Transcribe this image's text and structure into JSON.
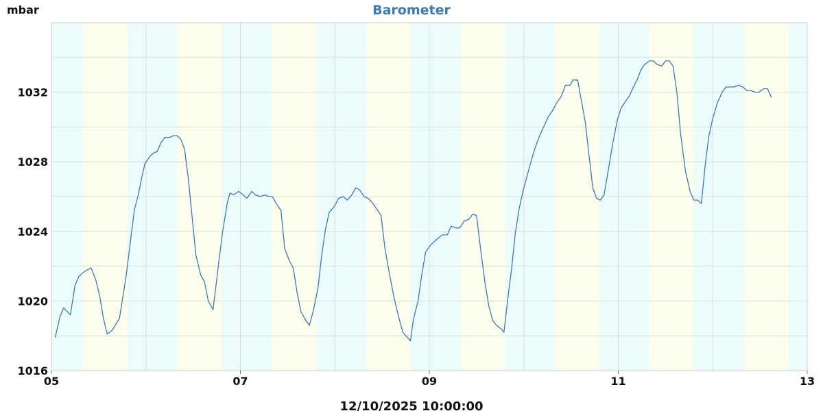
{
  "chart_data": {
    "type": "line",
    "title": "Barometer",
    "ylabel": "mbar",
    "xlabel": "12/10/2025 10:00:00",
    "xlim": [
      5,
      13
    ],
    "ylim": [
      1016,
      1036
    ],
    "x_ticks": [
      {
        "value": 5,
        "label": "05"
      },
      {
        "value": 7,
        "label": "07"
      },
      {
        "value": 9,
        "label": "09"
      },
      {
        "value": 11,
        "label": "11"
      },
      {
        "value": 13,
        "label": "13"
      }
    ],
    "y_ticks": [
      {
        "value": 1016,
        "label": "1016"
      },
      {
        "value": 1020,
        "label": "1020"
      },
      {
        "value": 1024,
        "label": "1024"
      },
      {
        "value": 1028,
        "label": "1028"
      },
      {
        "value": 1032,
        "label": "1032"
      }
    ],
    "grid": true,
    "line_color": "#3c78b4",
    "band_colors": [
      "#ecfcfc",
      "#fdfdec"
    ],
    "bands": [
      {
        "start": 5.0,
        "end": 5.33,
        "shade": 0
      },
      {
        "start": 5.33,
        "end": 5.8,
        "shade": 1
      },
      {
        "start": 5.8,
        "end": 6.33,
        "shade": 0
      },
      {
        "start": 6.33,
        "end": 6.8,
        "shade": 1
      },
      {
        "start": 6.8,
        "end": 7.33,
        "shade": 0
      },
      {
        "start": 7.33,
        "end": 7.8,
        "shade": 1
      },
      {
        "start": 7.8,
        "end": 8.33,
        "shade": 0
      },
      {
        "start": 8.33,
        "end": 8.8,
        "shade": 1
      },
      {
        "start": 8.8,
        "end": 9.33,
        "shade": 0
      },
      {
        "start": 9.33,
        "end": 9.8,
        "shade": 1
      },
      {
        "start": 9.8,
        "end": 10.33,
        "shade": 0
      },
      {
        "start": 10.33,
        "end": 10.8,
        "shade": 1
      },
      {
        "start": 10.8,
        "end": 11.33,
        "shade": 0
      },
      {
        "start": 11.33,
        "end": 11.8,
        "shade": 1
      },
      {
        "start": 11.8,
        "end": 12.33,
        "shade": 0
      },
      {
        "start": 12.33,
        "end": 12.8,
        "shade": 1
      },
      {
        "start": 12.8,
        "end": 13.0,
        "shade": 0
      }
    ],
    "series": [
      {
        "points": [
          [
            5.04,
            1017.9
          ],
          [
            5.09,
            1019.1
          ],
          [
            5.13,
            1019.6
          ],
          [
            5.2,
            1019.2
          ],
          [
            5.25,
            1020.9
          ],
          [
            5.29,
            1021.4
          ],
          [
            5.35,
            1021.7
          ],
          [
            5.42,
            1021.9
          ],
          [
            5.47,
            1021.2
          ],
          [
            5.51,
            1020.3
          ],
          [
            5.55,
            1019.0
          ],
          [
            5.59,
            1018.1
          ],
          [
            5.64,
            1018.3
          ],
          [
            5.72,
            1019.0
          ],
          [
            5.79,
            1021.4
          ],
          [
            5.84,
            1023.6
          ],
          [
            5.88,
            1025.3
          ],
          [
            5.92,
            1026.1
          ],
          [
            5.96,
            1027.2
          ],
          [
            5.99,
            1027.9
          ],
          [
            6.04,
            1028.3
          ],
          [
            6.08,
            1028.5
          ],
          [
            6.12,
            1028.6
          ],
          [
            6.16,
            1029.1
          ],
          [
            6.2,
            1029.4
          ],
          [
            6.25,
            1029.4
          ],
          [
            6.29,
            1029.5
          ],
          [
            6.33,
            1029.5
          ],
          [
            6.37,
            1029.3
          ],
          [
            6.41,
            1028.7
          ],
          [
            6.45,
            1027.0
          ],
          [
            6.49,
            1024.8
          ],
          [
            6.53,
            1022.6
          ],
          [
            6.58,
            1021.5
          ],
          [
            6.62,
            1021.1
          ],
          [
            6.66,
            1020.0
          ],
          [
            6.71,
            1019.5
          ],
          [
            6.76,
            1021.7
          ],
          [
            6.81,
            1023.9
          ],
          [
            6.86,
            1025.6
          ],
          [
            6.89,
            1026.2
          ],
          [
            6.93,
            1026.1
          ],
          [
            6.98,
            1026.3
          ],
          [
            7.03,
            1026.1
          ],
          [
            7.07,
            1025.9
          ],
          [
            7.12,
            1026.3
          ],
          [
            7.16,
            1026.1
          ],
          [
            7.21,
            1026.0
          ],
          [
            7.26,
            1026.1
          ],
          [
            7.3,
            1026.0
          ],
          [
            7.34,
            1026.0
          ],
          [
            7.38,
            1025.6
          ],
          [
            7.43,
            1025.2
          ],
          [
            7.47,
            1023.0
          ],
          [
            7.52,
            1022.3
          ],
          [
            7.56,
            1021.9
          ],
          [
            7.6,
            1020.5
          ],
          [
            7.64,
            1019.4
          ],
          [
            7.69,
            1018.9
          ],
          [
            7.73,
            1018.6
          ],
          [
            7.77,
            1019.4
          ],
          [
            7.82,
            1020.7
          ],
          [
            7.86,
            1022.6
          ],
          [
            7.9,
            1024.1
          ],
          [
            7.94,
            1025.1
          ],
          [
            7.99,
            1025.4
          ],
          [
            8.04,
            1025.9
          ],
          [
            8.09,
            1026.0
          ],
          [
            8.13,
            1025.8
          ],
          [
            8.18,
            1026.1
          ],
          [
            8.22,
            1026.5
          ],
          [
            8.26,
            1026.4
          ],
          [
            8.31,
            1026.0
          ],
          [
            8.35,
            1025.9
          ],
          [
            8.39,
            1025.7
          ],
          [
            8.44,
            1025.3
          ],
          [
            8.49,
            1024.9
          ],
          [
            8.53,
            1023.0
          ],
          [
            8.58,
            1021.5
          ],
          [
            8.63,
            1020.1
          ],
          [
            8.68,
            1019.0
          ],
          [
            8.72,
            1018.2
          ],
          [
            8.8,
            1017.7
          ],
          [
            8.83,
            1018.9
          ],
          [
            8.88,
            1020.0
          ],
          [
            8.92,
            1021.5
          ],
          [
            8.96,
            1022.8
          ],
          [
            9.01,
            1023.2
          ],
          [
            9.05,
            1023.4
          ],
          [
            9.09,
            1023.6
          ],
          [
            9.14,
            1023.8
          ],
          [
            9.19,
            1023.8
          ],
          [
            9.23,
            1024.3
          ],
          [
            9.28,
            1024.2
          ],
          [
            9.32,
            1024.2
          ],
          [
            9.37,
            1024.6
          ],
          [
            9.42,
            1024.7
          ],
          [
            9.46,
            1025.0
          ],
          [
            9.5,
            1024.9
          ],
          [
            9.54,
            1023.1
          ],
          [
            9.59,
            1021.0
          ],
          [
            9.63,
            1019.7
          ],
          [
            9.67,
            1018.9
          ],
          [
            9.71,
            1018.6
          ],
          [
            9.76,
            1018.4
          ],
          [
            9.79,
            1018.2
          ],
          [
            9.83,
            1020.1
          ],
          [
            9.87,
            1021.8
          ],
          [
            9.91,
            1023.9
          ],
          [
            9.95,
            1025.3
          ],
          [
            9.99,
            1026.3
          ],
          [
            10.04,
            1027.3
          ],
          [
            10.08,
            1028.1
          ],
          [
            10.12,
            1028.8
          ],
          [
            10.16,
            1029.4
          ],
          [
            10.21,
            1030.0
          ],
          [
            10.26,
            1030.6
          ],
          [
            10.31,
            1031.0
          ],
          [
            10.35,
            1031.4
          ],
          [
            10.4,
            1031.8
          ],
          [
            10.44,
            1032.4
          ],
          [
            10.49,
            1032.4
          ],
          [
            10.52,
            1032.7
          ],
          [
            10.57,
            1032.7
          ],
          [
            10.6,
            1031.8
          ],
          [
            10.65,
            1030.3
          ],
          [
            10.69,
            1028.4
          ],
          [
            10.73,
            1026.5
          ],
          [
            10.77,
            1025.9
          ],
          [
            10.81,
            1025.8
          ],
          [
            10.85,
            1026.1
          ],
          [
            10.9,
            1027.7
          ],
          [
            10.94,
            1029.0
          ],
          [
            10.99,
            1030.4
          ],
          [
            11.03,
            1031.1
          ],
          [
            11.08,
            1031.5
          ],
          [
            11.12,
            1031.8
          ],
          [
            11.16,
            1032.3
          ],
          [
            11.2,
            1032.7
          ],
          [
            11.24,
            1033.3
          ],
          [
            11.28,
            1033.6
          ],
          [
            11.33,
            1033.8
          ],
          [
            11.37,
            1033.8
          ],
          [
            11.41,
            1033.6
          ],
          [
            11.46,
            1033.5
          ],
          [
            11.5,
            1033.8
          ],
          [
            11.54,
            1033.8
          ],
          [
            11.58,
            1033.5
          ],
          [
            11.62,
            1032.0
          ],
          [
            11.66,
            1029.6
          ],
          [
            11.71,
            1027.5
          ],
          [
            11.76,
            1026.3
          ],
          [
            11.8,
            1025.8
          ],
          [
            11.84,
            1025.8
          ],
          [
            11.88,
            1025.6
          ],
          [
            11.92,
            1027.8
          ],
          [
            11.96,
            1029.5
          ],
          [
            12.0,
            1030.5
          ],
          [
            12.05,
            1031.4
          ],
          [
            12.1,
            1032.0
          ],
          [
            12.14,
            1032.3
          ],
          [
            12.18,
            1032.3
          ],
          [
            12.23,
            1032.3
          ],
          [
            12.27,
            1032.4
          ],
          [
            12.32,
            1032.3
          ],
          [
            12.36,
            1032.1
          ],
          [
            12.4,
            1032.1
          ],
          [
            12.45,
            1032.0
          ],
          [
            12.49,
            1032.0
          ],
          [
            12.54,
            1032.2
          ],
          [
            12.58,
            1032.2
          ],
          [
            12.62,
            1031.7
          ]
        ]
      }
    ]
  }
}
